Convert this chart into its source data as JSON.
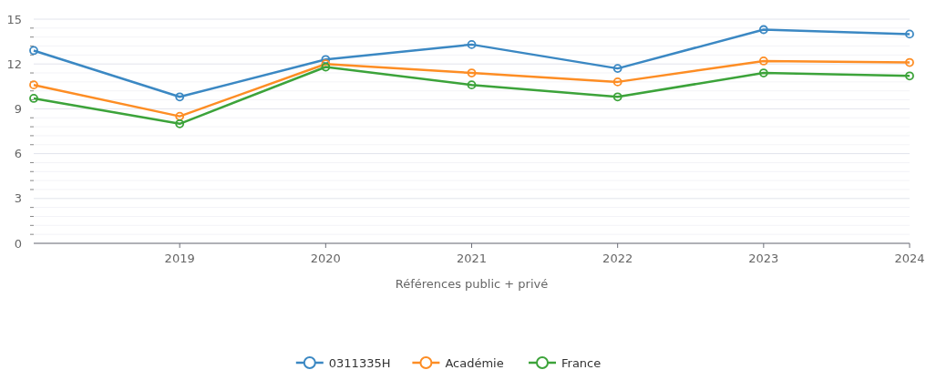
{
  "chart_data": {
    "type": "line",
    "xlabel": "Références public + privé",
    "x": [
      2018,
      2019,
      2020,
      2021,
      2022,
      2023,
      2024
    ],
    "xlim": [
      2018,
      2024
    ],
    "xticks": [
      2019,
      2020,
      2021,
      2022,
      2023,
      2024
    ],
    "ylim": [
      0,
      15
    ],
    "yticks": [
      0,
      {
        "value": 0.6,
        "label": null
      },
      {
        "value": 1.2,
        "label": null
      },
      {
        "value": 1.8,
        "label": null
      },
      {
        "value": 2.4,
        "label": null
      },
      3,
      {
        "value": 3.6,
        "label": null
      },
      {
        "value": 4.2,
        "label": null
      },
      {
        "value": 4.8,
        "label": null
      },
      {
        "value": 5.4,
        "label": null
      },
      6,
      {
        "value": 6.6,
        "label": null
      },
      {
        "value": 7.2,
        "label": null
      },
      {
        "value": 7.8,
        "label": null
      },
      {
        "value": 8.4,
        "label": null
      },
      9,
      {
        "value": 9.6,
        "label": null
      },
      {
        "value": 10.2,
        "label": null
      },
      {
        "value": 10.8,
        "label": null
      },
      {
        "value": 11.4,
        "label": null
      },
      12,
      {
        "value": 12.6,
        "label": null
      },
      {
        "value": 13.2,
        "label": null
      },
      {
        "value": 13.8,
        "label": null
      },
      {
        "value": 14.4,
        "label": null
      },
      15
    ],
    "grid": "y",
    "legend": "bottom",
    "marker": "circle",
    "line_style": "solid",
    "series": [
      {
        "name": "0311335H",
        "color": "#3b88c3",
        "values": [
          12.9,
          9.8,
          12.3,
          13.3,
          11.7,
          14.3,
          14.0
        ]
      },
      {
        "name": "Académie",
        "color": "#fd8d24",
        "values": [
          10.6,
          8.5,
          12.0,
          11.4,
          10.8,
          12.2,
          12.1
        ]
      },
      {
        "name": "France",
        "color": "#3ca33a",
        "values": [
          9.7,
          8.0,
          11.8,
          10.6,
          9.8,
          11.4,
          11.2
        ]
      }
    ]
  }
}
